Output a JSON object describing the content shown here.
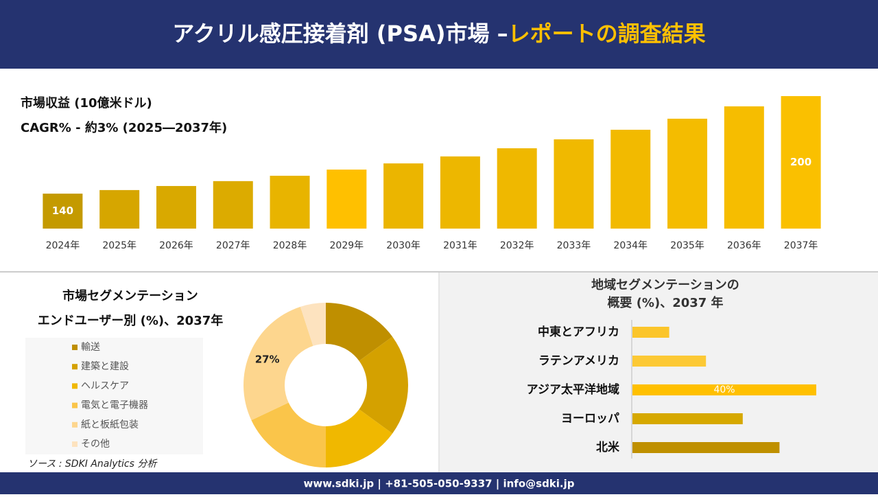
{
  "header": {
    "title": "アクリル感圧接着剤 (PSA)市場 –",
    "highlight": "レポートの調査結果"
  },
  "chart_data": [
    {
      "type": "bar",
      "title": "市場収益 (10億米ドル)",
      "subtitle": "CAGR% - 約3% (2025―2037年)",
      "categories": [
        "2024年",
        "2025年",
        "2026年",
        "2027年",
        "2028年",
        "2029年",
        "2030年",
        "2031年",
        "2032年",
        "2033年",
        "2034年",
        "2035年",
        "2036年",
        "2037年"
      ],
      "values": [
        140,
        142.2,
        144.7,
        147.7,
        151,
        154.8,
        158.6,
        162.9,
        167.9,
        173.4,
        179.3,
        186.1,
        193.7,
        200
      ],
      "value_labels": [
        "140",
        null,
        null,
        null,
        null,
        null,
        null,
        null,
        null,
        null,
        null,
        null,
        null,
        "200"
      ],
      "colors": [
        "#c49a00",
        "#d6a600",
        "#d9a900",
        "#dcab00",
        "#e8b400",
        "#ffc000",
        "#ebb500",
        "#edb700",
        "#efb800",
        "#f0b900",
        "#f2ba00",
        "#f4bc00",
        "#f6bd00",
        "#fac000"
      ],
      "ylim": [
        118.5,
        200
      ]
    },
    {
      "type": "donut",
      "title": [
        "市場セグメンテーション",
        "エンドユーザー別 (%)、2037年"
      ],
      "categories": [
        "輸送",
        "建築と建設",
        "ヘルスケア",
        "電気と電子機器",
        "紙と板紙包装",
        "その他"
      ],
      "values": [
        15,
        20,
        15,
        18,
        27,
        5
      ],
      "value_labels": [
        null,
        null,
        null,
        null,
        "27%",
        null
      ],
      "colors": [
        "#bf8f00",
        "#d4a100",
        "#f0b800",
        "#fac54a",
        "#fdd68e",
        "#fde3bf"
      ]
    },
    {
      "type": "hbar",
      "title": [
        "地域セグメンテーションの",
        "概要 (%)、2037 年"
      ],
      "categories": [
        "中東とアフリカ",
        "ラテンアメリカ",
        "アジア太平洋地域",
        "ヨーロッパ",
        "北米"
      ],
      "values": [
        8,
        16,
        40,
        24,
        32
      ],
      "value_labels": [
        null,
        null,
        "40%",
        null,
        null
      ],
      "colors": [
        "#fbc52a",
        "#fcc935",
        "#ffc000",
        "#d6a800",
        "#bf9000"
      ],
      "xlim": [
        0,
        40
      ]
    }
  ],
  "source": "ソース : SDKI Analytics 分析",
  "footer": {
    "contact": "www.sdki.jp | +81-505-050-9337 | info@sdki.jp"
  }
}
